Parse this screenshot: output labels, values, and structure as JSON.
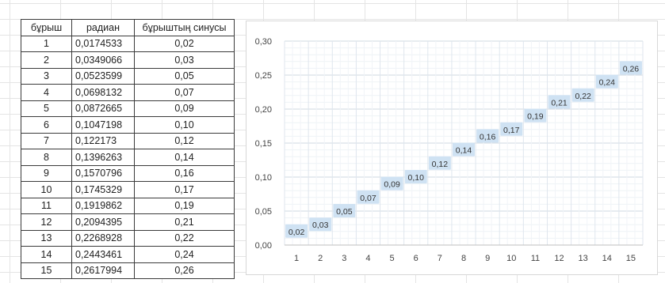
{
  "table": {
    "headers": [
      "бұрыш",
      "радиан",
      "бұрыштың синусы"
    ],
    "rows": [
      [
        "1",
        "0,0174533",
        "0,02"
      ],
      [
        "2",
        "0,0349066",
        "0,03"
      ],
      [
        "3",
        "0,0523599",
        "0,05"
      ],
      [
        "4",
        "0,0698132",
        "0,07"
      ],
      [
        "5",
        "0,0872665",
        "0,09"
      ],
      [
        "6",
        "0,1047198",
        "0,10"
      ],
      [
        "7",
        "0,122173",
        "0,12"
      ],
      [
        "8",
        "0,1396263",
        "0,14"
      ],
      [
        "9",
        "0,1570796",
        "0,16"
      ],
      [
        "10",
        "0,1745329",
        "0,17"
      ],
      [
        "11",
        "0,1919862",
        "0,19"
      ],
      [
        "12",
        "0,2094395",
        "0,21"
      ],
      [
        "13",
        "0,2268928",
        "0,22"
      ],
      [
        "14",
        "0,2443461",
        "0,24"
      ],
      [
        "15",
        "0,2617994",
        "0,26"
      ]
    ]
  },
  "chart_data": {
    "type": "line",
    "categories": [
      "1",
      "2",
      "3",
      "4",
      "5",
      "6",
      "7",
      "8",
      "9",
      "10",
      "11",
      "12",
      "13",
      "14",
      "15"
    ],
    "values": [
      0.02,
      0.03,
      0.05,
      0.07,
      0.09,
      0.1,
      0.12,
      0.14,
      0.16,
      0.17,
      0.19,
      0.21,
      0.22,
      0.24,
      0.26
    ],
    "data_labels": [
      "0,02",
      "0,03",
      "0,05",
      "0,07",
      "0,09",
      "0,10",
      "0,12",
      "0,14",
      "0,16",
      "0,17",
      "0,19",
      "0,21",
      "0,22",
      "0,24",
      "0,26"
    ],
    "ylim": [
      0,
      0.3
    ],
    "y_ticks": [
      "0,00",
      "0,05",
      "0,10",
      "0,15",
      "0,20",
      "0,25",
      "0,30"
    ],
    "grid": true,
    "legend": "none",
    "series_line": "none",
    "colors": {
      "label_box": "#cfe2f3",
      "gridline": "#dfe6ee",
      "axis": "#bfbfbf"
    }
  }
}
